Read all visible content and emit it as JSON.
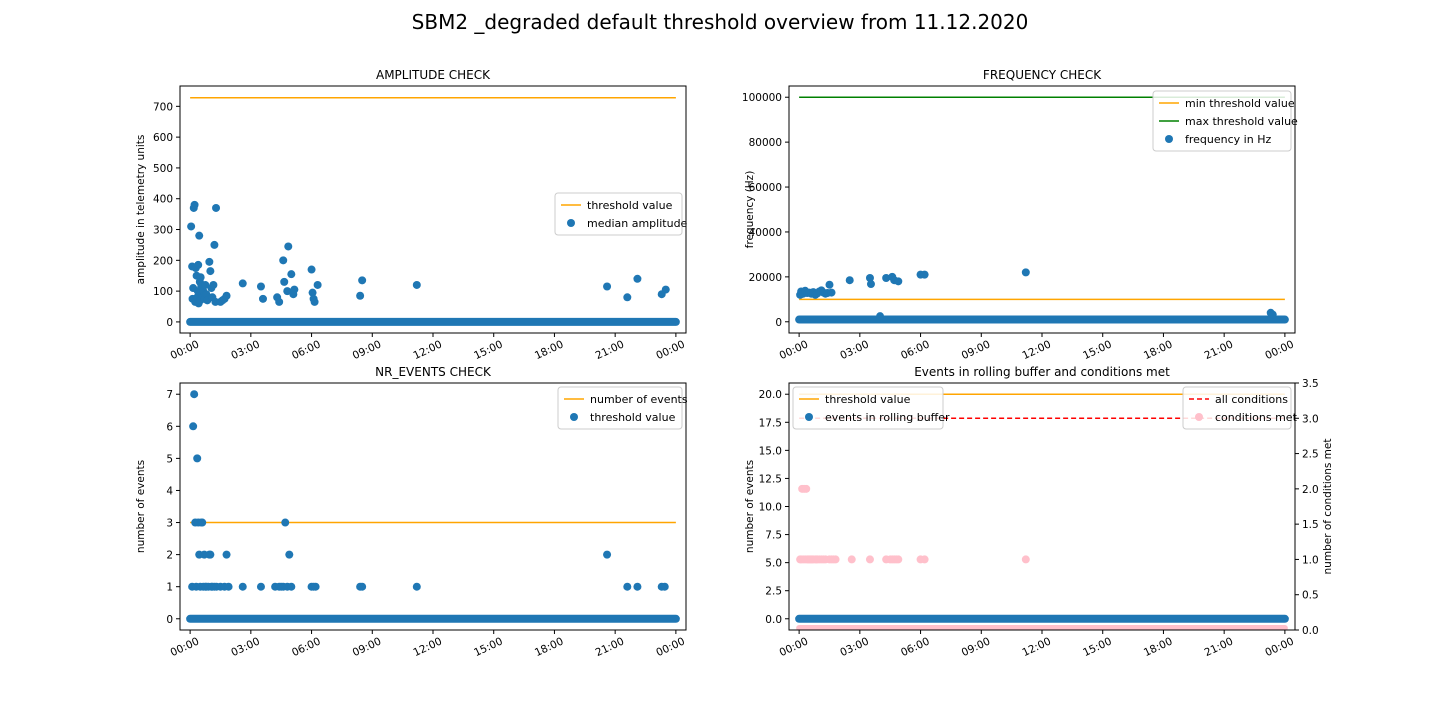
{
  "page": {
    "title": "SBM2 _degraded default threshold overview from 11.12.2020"
  },
  "colors": {
    "scatter": "#1f77b4",
    "threshold": "#ffa500",
    "max_threshold": "#008000",
    "all_conditions": "#ff0000",
    "conditions_met": "#ffc0cb"
  },
  "chart_data": [
    {
      "id": "amplitude",
      "type": "scatter",
      "title": "AMPLITUDE CHECK",
      "ylabel": "amplitude in telemetry units",
      "xlim": [
        -0.5,
        24.5
      ],
      "ylim": [
        -36,
        766
      ],
      "xticks": [
        0,
        3,
        6,
        9,
        12,
        15,
        18,
        21,
        24
      ],
      "xticklabels": [
        "00:00",
        "03:00",
        "06:00",
        "09:00",
        "12:00",
        "15:00",
        "18:00",
        "21:00",
        "00:00"
      ],
      "yticks": [
        0,
        100,
        200,
        300,
        400,
        500,
        600,
        700
      ],
      "yticklabels": [
        "0",
        "100",
        "200",
        "300",
        "400",
        "500",
        "600",
        "700"
      ],
      "legend": {
        "position": "center-right",
        "entries": [
          "threshold value",
          "median amplitude"
        ]
      },
      "lines": [
        {
          "name": "threshold value",
          "color": "#ffa500",
          "x": [
            0,
            24
          ],
          "y": [
            728,
            728
          ]
        }
      ],
      "baseline": {
        "y": 0,
        "x_from": 0,
        "x_to": 24
      },
      "points": [
        [
          0.05,
          310
        ],
        [
          0.1,
          180
        ],
        [
          0.12,
          75
        ],
        [
          0.15,
          110
        ],
        [
          0.18,
          370
        ],
        [
          0.22,
          380
        ],
        [
          0.25,
          65
        ],
        [
          0.28,
          175
        ],
        [
          0.3,
          70
        ],
        [
          0.32,
          150
        ],
        [
          0.35,
          80
        ],
        [
          0.38,
          100
        ],
        [
          0.4,
          185
        ],
        [
          0.42,
          60
        ],
        [
          0.45,
          280
        ],
        [
          0.48,
          130
        ],
        [
          0.5,
          70
        ],
        [
          0.52,
          145
        ],
        [
          0.55,
          115
        ],
        [
          0.58,
          90
        ],
        [
          0.6,
          80
        ],
        [
          0.65,
          100
        ],
        [
          0.7,
          75
        ],
        [
          0.75,
          120
        ],
        [
          0.8,
          90
        ],
        [
          0.85,
          70
        ],
        [
          0.95,
          195
        ],
        [
          1.0,
          165
        ],
        [
          1.05,
          110
        ],
        [
          1.1,
          80
        ],
        [
          1.15,
          120
        ],
        [
          1.2,
          250
        ],
        [
          1.25,
          65
        ],
        [
          1.28,
          370
        ],
        [
          1.5,
          65
        ],
        [
          1.6,
          70
        ],
        [
          1.7,
          75
        ],
        [
          1.8,
          85
        ],
        [
          2.6,
          125
        ],
        [
          3.5,
          115
        ],
        [
          3.6,
          75
        ],
        [
          4.3,
          80
        ],
        [
          4.4,
          65
        ],
        [
          4.6,
          200
        ],
        [
          4.65,
          130
        ],
        [
          4.8,
          100
        ],
        [
          4.85,
          245
        ],
        [
          5.0,
          155
        ],
        [
          5.1,
          90
        ],
        [
          5.15,
          105
        ],
        [
          6.0,
          170
        ],
        [
          6.05,
          95
        ],
        [
          6.1,
          75
        ],
        [
          6.15,
          65
        ],
        [
          6.3,
          120
        ],
        [
          8.4,
          85
        ],
        [
          8.5,
          135
        ],
        [
          11.2,
          120
        ],
        [
          20.6,
          115
        ],
        [
          21.6,
          80
        ],
        [
          22.1,
          140
        ],
        [
          23.3,
          90
        ],
        [
          23.5,
          105
        ]
      ]
    },
    {
      "id": "frequency",
      "type": "scatter",
      "title": "FREQUENCY CHECK",
      "ylabel": "frequency (Hz)",
      "xlim": [
        -0.5,
        24.5
      ],
      "ylim": [
        -5000,
        105000
      ],
      "xticks": [
        0,
        3,
        6,
        9,
        12,
        15,
        18,
        21,
        24
      ],
      "xticklabels": [
        "00:00",
        "03:00",
        "06:00",
        "09:00",
        "12:00",
        "15:00",
        "18:00",
        "21:00",
        "00:00"
      ],
      "yticks": [
        0,
        20000,
        40000,
        60000,
        80000,
        100000
      ],
      "yticklabels": [
        "0",
        "20000",
        "40000",
        "60000",
        "80000",
        "100000"
      ],
      "legend": {
        "position": "top-right",
        "entries": [
          "min threshold value",
          "max threshold value",
          "frequency in Hz"
        ]
      },
      "lines": [
        {
          "name": "min threshold value",
          "color": "#ffa500",
          "x": [
            0,
            24
          ],
          "y": [
            10000,
            10000
          ]
        },
        {
          "name": "max threshold value",
          "color": "#008000",
          "x": [
            0,
            24
          ],
          "y": [
            100000,
            100000
          ]
        }
      ],
      "baseline": {
        "y": 1000,
        "x_from": 0,
        "x_to": 24
      },
      "points": [
        [
          0.05,
          12000
        ],
        [
          0.1,
          13500
        ],
        [
          0.2,
          12500
        ],
        [
          0.3,
          13800
        ],
        [
          0.4,
          12800
        ],
        [
          0.5,
          13000
        ],
        [
          0.6,
          12500
        ],
        [
          0.7,
          13200
        ],
        [
          0.8,
          12000
        ],
        [
          0.9,
          12600
        ],
        [
          1.0,
          13500
        ],
        [
          1.1,
          14000
        ],
        [
          1.2,
          13000
        ],
        [
          1.3,
          12500
        ],
        [
          1.4,
          12800
        ],
        [
          1.5,
          16500
        ],
        [
          1.6,
          13000
        ],
        [
          2.5,
          18500
        ],
        [
          3.5,
          19500
        ],
        [
          3.55,
          16800
        ],
        [
          4.0,
          2500
        ],
        [
          4.3,
          19500
        ],
        [
          4.6,
          20000
        ],
        [
          4.7,
          18500
        ],
        [
          4.9,
          18000
        ],
        [
          6.0,
          21000
        ],
        [
          6.2,
          21000
        ],
        [
          11.2,
          22000
        ],
        [
          23.3,
          4000
        ],
        [
          23.4,
          3200
        ]
      ]
    },
    {
      "id": "nr_events",
      "type": "scatter",
      "title": "NR_EVENTS CHECK",
      "ylabel": "number of events",
      "xlim": [
        -0.5,
        24.5
      ],
      "ylim": [
        -0.35,
        7.35
      ],
      "xticks": [
        0,
        3,
        6,
        9,
        12,
        15,
        18,
        21,
        24
      ],
      "xticklabels": [
        "00:00",
        "03:00",
        "06:00",
        "09:00",
        "12:00",
        "15:00",
        "18:00",
        "21:00",
        "00:00"
      ],
      "yticks": [
        0,
        1,
        2,
        3,
        4,
        5,
        6,
        7
      ],
      "yticklabels": [
        "0",
        "1",
        "2",
        "3",
        "4",
        "5",
        "6",
        "7"
      ],
      "legend": {
        "position": "top-right",
        "entries": [
          "number of events",
          "threshold value"
        ]
      },
      "lines": [
        {
          "name": "number of events",
          "color": "#ffa500",
          "x": [
            0,
            24
          ],
          "y": [
            3,
            3
          ]
        }
      ],
      "baseline": {
        "y": 0,
        "x_from": 0,
        "x_to": 24
      },
      "points": [
        [
          0.1,
          1
        ],
        [
          0.15,
          6
        ],
        [
          0.2,
          7
        ],
        [
          0.25,
          3
        ],
        [
          0.3,
          1
        ],
        [
          0.35,
          5
        ],
        [
          0.4,
          3
        ],
        [
          0.45,
          2
        ],
        [
          0.5,
          1
        ],
        [
          0.55,
          3
        ],
        [
          0.6,
          3
        ],
        [
          0.65,
          1
        ],
        [
          0.7,
          2
        ],
        [
          0.75,
          1
        ],
        [
          0.8,
          1
        ],
        [
          0.9,
          1
        ],
        [
          0.95,
          2
        ],
        [
          1.0,
          2
        ],
        [
          1.05,
          1
        ],
        [
          1.1,
          1
        ],
        [
          1.2,
          1
        ],
        [
          1.3,
          1
        ],
        [
          1.5,
          1
        ],
        [
          1.7,
          1
        ],
        [
          1.8,
          2
        ],
        [
          1.9,
          1
        ],
        [
          2.6,
          1
        ],
        [
          3.5,
          1
        ],
        [
          4.2,
          1
        ],
        [
          4.4,
          1
        ],
        [
          4.5,
          1
        ],
        [
          4.6,
          1
        ],
        [
          4.7,
          3
        ],
        [
          4.8,
          1
        ],
        [
          4.9,
          2
        ],
        [
          5.0,
          1
        ],
        [
          6.0,
          1
        ],
        [
          6.1,
          1
        ],
        [
          6.2,
          1
        ],
        [
          8.4,
          1
        ],
        [
          8.5,
          1
        ],
        [
          11.2,
          1
        ],
        [
          20.6,
          2
        ],
        [
          21.6,
          1
        ],
        [
          22.1,
          1
        ],
        [
          23.3,
          1
        ],
        [
          23.45,
          1
        ]
      ]
    },
    {
      "id": "rolling_buffer",
      "type": "scatter",
      "title": "Events in rolling buffer and conditions met",
      "ylabel": "number of events",
      "ylabel_right": "number of conditions met",
      "xlim": [
        -0.5,
        24.5
      ],
      "ylim": [
        -1,
        21
      ],
      "ylim_right": [
        0,
        3.5
      ],
      "xticks": [
        0,
        3,
        6,
        9,
        12,
        15,
        18,
        21,
        24
      ],
      "xticklabels": [
        "00:00",
        "03:00",
        "06:00",
        "09:00",
        "12:00",
        "15:00",
        "18:00",
        "21:00",
        "00:00"
      ],
      "yticks": [
        0,
        2.5,
        5,
        7.5,
        10,
        12.5,
        15,
        17.5,
        20
      ],
      "yticklabels": [
        "0.0",
        "2.5",
        "5.0",
        "7.5",
        "10.0",
        "12.5",
        "15.0",
        "17.5",
        "20.0"
      ],
      "yticks_right": [
        0,
        0.5,
        1,
        1.5,
        2,
        2.5,
        3,
        3.5
      ],
      "yticklabels_right": [
        "0.0",
        "0.5",
        "1.0",
        "1.5",
        "2.0",
        "2.5",
        "3.0",
        "3.5"
      ],
      "legend_left": {
        "position": "top-left",
        "entries": [
          "threshold value",
          "events in rolling buffer"
        ]
      },
      "legend_right": {
        "position": "top-right",
        "entries": [
          "all conditions",
          "conditions met"
        ]
      },
      "lines": [
        {
          "name": "threshold value",
          "color": "#ffa500",
          "x": [
            0,
            24
          ],
          "y": [
            20,
            20
          ]
        }
      ],
      "lines_right": [
        {
          "name": "all conditions",
          "color": "#ff0000",
          "dashed": true,
          "x": [
            0,
            24
          ],
          "y": [
            3,
            3
          ]
        }
      ],
      "baseline": {
        "y": 0,
        "x_from": 0,
        "x_to": 24
      },
      "baseline_right": {
        "y": 0,
        "x_from": 0,
        "x_to": 24
      },
      "points_right": [
        [
          0.05,
          1
        ],
        [
          0.1,
          1
        ],
        [
          0.15,
          2
        ],
        [
          0.2,
          1
        ],
        [
          0.25,
          2
        ],
        [
          0.3,
          1
        ],
        [
          0.35,
          2
        ],
        [
          0.4,
          1
        ],
        [
          0.45,
          1
        ],
        [
          0.5,
          1
        ],
        [
          0.55,
          1
        ],
        [
          0.6,
          1
        ],
        [
          0.65,
          1
        ],
        [
          0.7,
          1
        ],
        [
          0.8,
          1
        ],
        [
          0.85,
          1
        ],
        [
          0.9,
          1
        ],
        [
          1.0,
          1
        ],
        [
          1.1,
          1
        ],
        [
          1.2,
          1
        ],
        [
          1.3,
          1
        ],
        [
          1.5,
          1
        ],
        [
          1.6,
          1
        ],
        [
          1.7,
          1
        ],
        [
          1.8,
          1
        ],
        [
          2.6,
          1
        ],
        [
          3.5,
          1
        ],
        [
          4.3,
          1
        ],
        [
          4.5,
          1
        ],
        [
          4.6,
          1
        ],
        [
          4.7,
          1
        ],
        [
          4.8,
          1
        ],
        [
          4.9,
          1
        ],
        [
          6.0,
          1
        ],
        [
          6.2,
          1
        ],
        [
          11.2,
          1
        ]
      ]
    }
  ]
}
